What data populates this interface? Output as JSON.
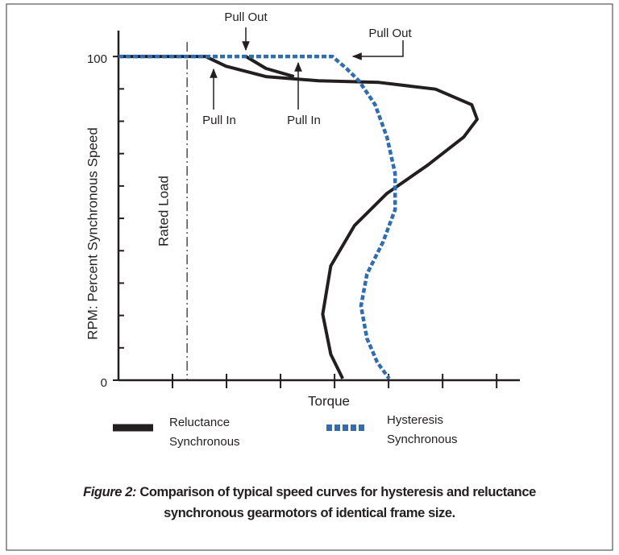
{
  "chart_data": {
    "type": "line",
    "ylabel": "RPM: Percent Synchronous Speed",
    "xlabel": "Torque",
    "xlim": [
      0,
      7.43
    ],
    "ylim": [
      0,
      108
    ],
    "yticks": [
      0,
      100
    ],
    "yminorticks": [
      10,
      20,
      30,
      40,
      50,
      60,
      70,
      80,
      90
    ],
    "xminorticks": [
      1,
      2,
      3,
      4,
      5,
      6,
      7
    ],
    "rated_load": {
      "label": "Rated Load",
      "x": 1.27
    },
    "annotations": [
      "Pull Out",
      "Pull Out",
      "Pull In",
      "Pull In"
    ],
    "series": [
      {
        "name": "Reluctance Synchronous",
        "color": "#231f20",
        "style": "solid",
        "x": [
          0,
          1.61,
          1.99,
          2.73,
          3.7,
          4.82,
          5.87,
          6.54,
          6.64,
          6.39,
          5.72,
          4.97,
          4.37,
          3.93,
          3.78,
          3.93,
          4.15,
          null,
          2.36,
          2.73,
          3.25
        ],
        "values": [
          100,
          100,
          97.0,
          93.8,
          92.5,
          92.0,
          89.9,
          85.1,
          80.6,
          75.1,
          66.4,
          57.7,
          47.8,
          35.3,
          20.4,
          8.0,
          0.5,
          null,
          100,
          96.3,
          93.8
        ]
      },
      {
        "name": "Hysteresis Synchronous",
        "color": "#2e6db4",
        "style": "dashed",
        "x": [
          0,
          3.96,
          4.22,
          4.45,
          4.75,
          4.97,
          5.12,
          5.12,
          4.9,
          4.6,
          4.49,
          4.6,
          4.79,
          5.01
        ],
        "values": [
          100,
          100,
          96.3,
          92.5,
          85.1,
          75.1,
          63.9,
          52.7,
          42.8,
          32.8,
          22.9,
          12.9,
          5.5,
          0.5
        ]
      }
    ],
    "caption_label": "Figure 2:",
    "caption": "Comparison of typical speed curves for hysteresis and reluctance synchronous gearmotors of identical frame size."
  }
}
